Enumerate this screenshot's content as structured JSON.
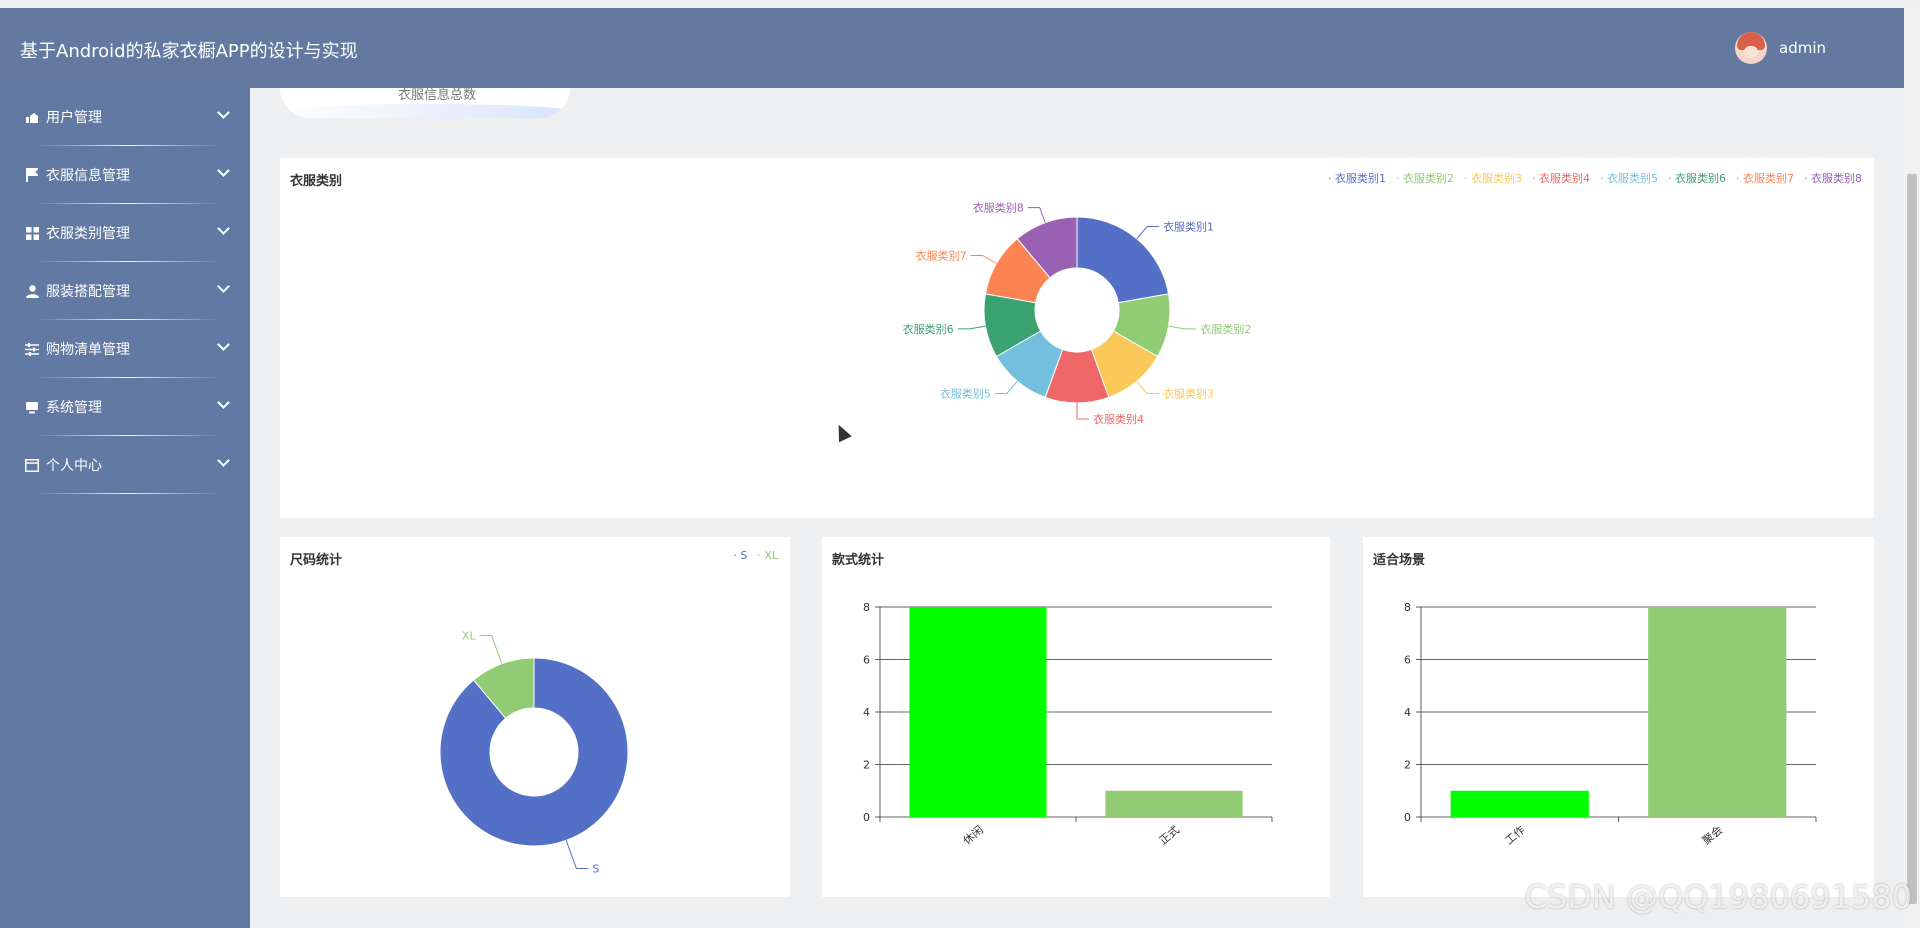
{
  "header": {
    "title": "基于Android的私家衣橱APP的设计与实现",
    "username": "admin"
  },
  "sidebar": {
    "items": [
      {
        "label": "用户管理",
        "icon": "user-manage-icon"
      },
      {
        "label": "衣服信息管理",
        "icon": "flag-icon"
      },
      {
        "label": "衣服类别管理",
        "icon": "grid-icon"
      },
      {
        "label": "服装搭配管理",
        "icon": "person-icon"
      },
      {
        "label": "购物清单管理",
        "icon": "sliders-icon"
      },
      {
        "label": "系统管理",
        "icon": "monitor-icon"
      },
      {
        "label": "个人中心",
        "icon": "card-icon"
      }
    ]
  },
  "stat_card": {
    "label": "衣服信息总数"
  },
  "watermark": "CSDN @QQ1980691580",
  "chart_data": [
    {
      "type": "pie",
      "title": "衣服类别",
      "donut": true,
      "categories": [
        "衣服类别1",
        "衣服类别2",
        "衣服类别3",
        "衣服类别4",
        "衣服类别5",
        "衣服类别6",
        "衣服类别7",
        "衣服类别8"
      ],
      "values": [
        2,
        1,
        1,
        1,
        1,
        1,
        1,
        1
      ],
      "colors": [
        "#5470c6",
        "#91cc75",
        "#fac858",
        "#ee6666",
        "#73c0de",
        "#3ba272",
        "#fc8452",
        "#9a60b4"
      ],
      "legend": "top-right"
    },
    {
      "type": "pie",
      "title": "尺码统计",
      "donut": true,
      "categories": [
        "S",
        "XL"
      ],
      "values": [
        8,
        1
      ],
      "colors": [
        "#5470c6",
        "#91cc75"
      ],
      "legend": "top-right"
    },
    {
      "type": "bar",
      "title": "款式统计",
      "categories": [
        "休闲",
        "正式"
      ],
      "values": [
        8,
        1
      ],
      "colors": [
        "#00ff00",
        "#91cc75"
      ],
      "ylim": [
        0,
        8
      ],
      "yticks": [
        0,
        2,
        4,
        6,
        8
      ]
    },
    {
      "type": "bar",
      "title": "适合场景",
      "categories": [
        "工作",
        "聚会"
      ],
      "values": [
        1,
        8
      ],
      "colors": [
        "#00ff00",
        "#91cc75"
      ],
      "ylim": [
        0,
        8
      ],
      "yticks": [
        0,
        2,
        4,
        6,
        8
      ]
    }
  ]
}
